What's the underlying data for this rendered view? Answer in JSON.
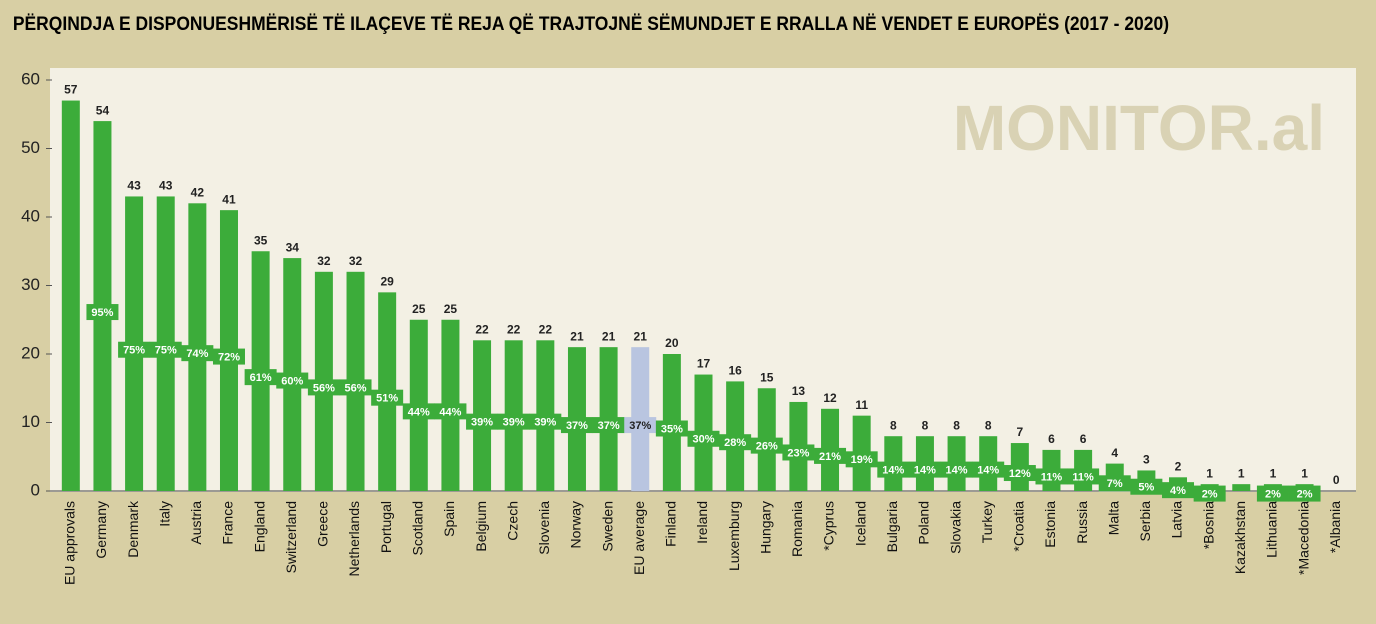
{
  "chart_data": {
    "type": "bar",
    "title": "PËRQINDJA E DISPONUESHMËRISË TË ILAÇEVE TË REJA QË TRAJTOJNË SËMUNDJET E RRALLA NË VENDET E EUROPËS (2017 - 2020)",
    "watermark": "MONITOR.al",
    "categories": [
      "EU approvals",
      "Germany",
      "Denmark",
      "Italy",
      "Austria",
      "France",
      "England",
      "Switzerland",
      "Greece",
      "Netherlands",
      "Portugal",
      "Scotland",
      "Spain",
      "Belgium",
      "Czech",
      "Slovenia",
      "Norway",
      "Sweden",
      "EU average",
      "Finland",
      "Ireland",
      "Luxemburg",
      "Hungary",
      "Romania",
      "*Cyprus",
      "Iceland",
      "Bulgaria",
      "Poland",
      "Slovakia",
      "Turkey",
      "*Croatia",
      "Estonia",
      "Russia",
      "Malta",
      "Serbia",
      "Latvia",
      "*Bosnia",
      "Kazakhstan",
      "Lithuania",
      "*Macedonia",
      "*Albania"
    ],
    "values": [
      57,
      54,
      43,
      43,
      42,
      41,
      35,
      34,
      32,
      32,
      29,
      25,
      25,
      22,
      22,
      22,
      21,
      21,
      21,
      20,
      17,
      16,
      15,
      13,
      12,
      11,
      8,
      8,
      8,
      8,
      7,
      6,
      6,
      4,
      3,
      2,
      1,
      1,
      1,
      1,
      0
    ],
    "share_labels": [
      null,
      "95%",
      "75%",
      "75%",
      "74%",
      "72%",
      "61%",
      "60%",
      "56%",
      "56%",
      "51%",
      "44%",
      "44%",
      "39%",
      "39%",
      "39%",
      "37%",
      "37%",
      "37%",
      "35%",
      "30%",
      "28%",
      "26%",
      "23%",
      "21%",
      "19%",
      "14%",
      "14%",
      "14%",
      "14%",
      "12%",
      "11%",
      "11%",
      "7%",
      "5%",
      "4%",
      "2%",
      null,
      "2%",
      "2%",
      null
    ],
    "colors": [
      "#3cac3a",
      "#3cac3a",
      "#3cac3a",
      "#3cac3a",
      "#3cac3a",
      "#3cac3a",
      "#3cac3a",
      "#3cac3a",
      "#3cac3a",
      "#3cac3a",
      "#3cac3a",
      "#3cac3a",
      "#3cac3a",
      "#3cac3a",
      "#3cac3a",
      "#3cac3a",
      "#3cac3a",
      "#3cac3a",
      "#b9c5e0",
      "#3cac3a",
      "#3cac3a",
      "#3cac3a",
      "#3cac3a",
      "#3cac3a",
      "#3cac3a",
      "#3cac3a",
      "#3cac3a",
      "#3cac3a",
      "#3cac3a",
      "#3cac3a",
      "#3cac3a",
      "#3cac3a",
      "#3cac3a",
      "#3cac3a",
      "#3cac3a",
      "#3cac3a",
      "#3cac3a",
      "#3cac3a",
      "#3cac3a",
      "#3cac3a",
      "#3cac3a"
    ],
    "ylim": [
      0,
      60
    ],
    "yticks": [
      0,
      10,
      20,
      30,
      40,
      50,
      60
    ],
    "grid": false
  }
}
